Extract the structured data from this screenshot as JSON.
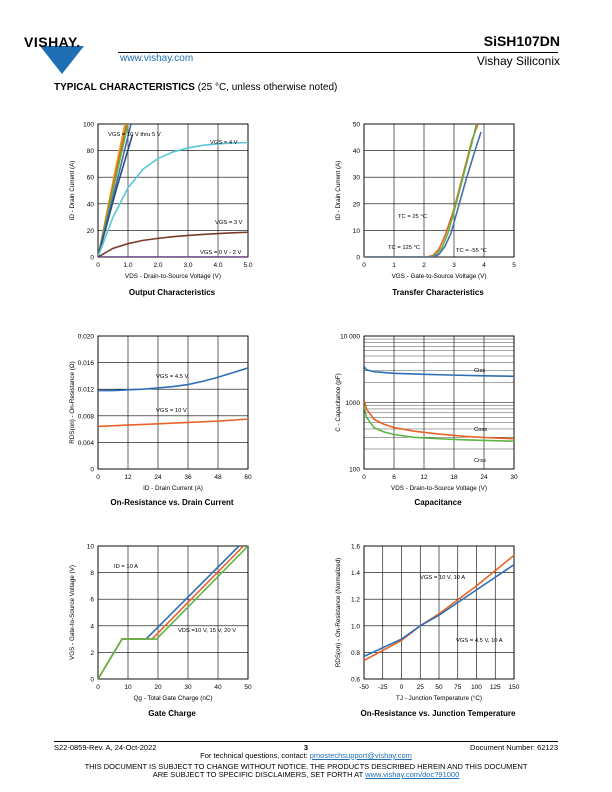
{
  "header": {
    "logo_text": "VISHAY.",
    "url": "www.vishay.com",
    "part_number": "SiSH107DN",
    "company": "Vishay Siliconix"
  },
  "section": {
    "title_bold": "TYPICAL CHARACTERISTICS",
    "title_rest": " (25 °C, unless otherwise noted)"
  },
  "chart_data": [
    {
      "type": "line",
      "title": "Output Characteristics",
      "xlabel": "VDS - Drain-to-Source Voltage (V)",
      "ylabel": "ID - Drain Current (A)",
      "xlim": [
        0,
        5
      ],
      "ylim": [
        0,
        100
      ],
      "xticks": [
        "0",
        "1.0",
        "2.0",
        "3.0",
        "4.0",
        "5.0"
      ],
      "yticks": [
        "0",
        "20",
        "40",
        "60",
        "80",
        "100"
      ],
      "annotations": [
        "VGS = 10 V thru 5 V",
        "VGS = 4 V",
        "VGS = 3 V",
        "VGS = 0 V - 2 V"
      ],
      "series": [
        {
          "color": "#e8a317",
          "x": [
            0,
            0.3,
            0.6,
            0.9
          ],
          "y": [
            0,
            34,
            68,
            100
          ]
        },
        {
          "color": "#e8632a",
          "x": [
            0,
            0.3,
            0.6,
            0.95
          ],
          "y": [
            0,
            32,
            64,
            100
          ]
        },
        {
          "color": "#5fb544",
          "x": [
            0,
            0.3,
            0.6,
            1.0
          ],
          "y": [
            0,
            30,
            60,
            100
          ]
        },
        {
          "color": "#4a6fa5",
          "x": [
            0,
            0.3,
            0.6,
            1.1
          ],
          "y": [
            0,
            27,
            54,
            100
          ]
        },
        {
          "color": "#2a4c8a",
          "x": [
            0,
            0.3,
            0.6,
            1.15
          ],
          "y": [
            0,
            25,
            50,
            92
          ]
        },
        {
          "color": "#5ac8d8",
          "x": [
            0,
            0.5,
            1.0,
            1.5,
            2.0,
            2.5,
            3.0,
            3.5,
            4.0,
            4.5,
            5.0
          ],
          "y": [
            0,
            30,
            52,
            66,
            74,
            79,
            82,
            84,
            85,
            85.8,
            86
          ]
        },
        {
          "color": "#7a3a2a",
          "x": [
            0,
            0.5,
            1.0,
            1.5,
            2.0,
            2.5,
            3.0,
            3.5,
            4.0,
            4.5,
            5.0
          ],
          "y": [
            0,
            6.5,
            10,
            12.5,
            14,
            15.3,
            16.2,
            17,
            17.6,
            18.2,
            18.6
          ]
        },
        {
          "color": "#6a2a8a",
          "x": [
            0,
            5
          ],
          "y": [
            0,
            0
          ]
        }
      ]
    },
    {
      "type": "line",
      "title": "Transfer Characteristics",
      "xlabel": "VGS - Gate-to-Source Voltage (V)",
      "ylabel": "ID - Drain Current (A)",
      "xlim": [
        0,
        5
      ],
      "ylim": [
        0,
        50
      ],
      "xticks": [
        "0",
        "1",
        "2",
        "3",
        "4",
        "5"
      ],
      "yticks": [
        "0",
        "10",
        "20",
        "30",
        "40",
        "50"
      ],
      "annotations": [
        "TC = 25 °C",
        "TC = 125 °C",
        "TC = -55 °C"
      ],
      "series": [
        {
          "color": "#e8632a",
          "x": [
            0,
            2.1,
            2.3,
            2.5,
            2.7,
            3.0,
            3.3,
            3.6,
            3.8
          ],
          "y": [
            0,
            0,
            0.6,
            3,
            8,
            18,
            31,
            44,
            50
          ]
        },
        {
          "color": "#5fb544",
          "x": [
            0,
            2.2,
            2.4,
            2.6,
            2.8,
            3.0,
            3.3,
            3.6,
            3.75
          ],
          "y": [
            0,
            0,
            0.8,
            3.5,
            9,
            17,
            30,
            43,
            50
          ]
        },
        {
          "color": "#4a6fa5",
          "x": [
            0,
            2.3,
            2.5,
            2.7,
            2.9,
            3.1,
            3.4,
            3.7,
            3.9
          ],
          "y": [
            0,
            0,
            1,
            4,
            9,
            17,
            29,
            40,
            47
          ]
        }
      ]
    },
    {
      "type": "line",
      "title": "On-Resistance vs. Drain Current",
      "xlabel": "ID - Drain Current (A)",
      "ylabel": "RDS(on) - On-Resistance (Ω)",
      "xlim": [
        0,
        60
      ],
      "ylim": [
        0,
        0.02
      ],
      "xticks": [
        "0",
        "12",
        "24",
        "36",
        "48",
        "60"
      ],
      "yticks": [
        "0",
        "0.004",
        "0.008",
        "0.012",
        "0.016",
        "0.020"
      ],
      "annotations": [
        "VGS = 4.5 V",
        "VGS = 10 V"
      ],
      "series": [
        {
          "color": "#2f6fb5",
          "x": [
            0,
            6,
            12,
            18,
            24,
            30,
            36,
            42,
            48,
            54,
            60
          ],
          "y": [
            0.0118,
            0.0118,
            0.0119,
            0.012,
            0.0122,
            0.0124,
            0.0127,
            0.0132,
            0.0138,
            0.0145,
            0.0152
          ]
        },
        {
          "color": "#e8632a",
          "x": [
            0,
            12,
            24,
            36,
            48,
            60
          ],
          "y": [
            0.0064,
            0.0066,
            0.0068,
            0.007,
            0.0072,
            0.0075
          ]
        }
      ]
    },
    {
      "type": "line",
      "title": "Capacitance",
      "xlabel": "VDS - Drain-to-Source Voltage (V)",
      "ylabel": "C - Capacitance (pF)",
      "xlim": [
        0,
        30
      ],
      "ylim": [
        100,
        10000
      ],
      "scale": "log",
      "xticks": [
        "0",
        "6",
        "12",
        "18",
        "24",
        "30"
      ],
      "yticks": [
        "100",
        "1000",
        "10 000"
      ],
      "annotations": [
        "Ciss",
        "Coss",
        "Crss"
      ],
      "series": [
        {
          "color": "#2f6fb5",
          "x": [
            0,
            0.5,
            2,
            6,
            12,
            18,
            24,
            30
          ],
          "y": [
            3500,
            3100,
            2900,
            2750,
            2650,
            2580,
            2520,
            2480
          ]
        },
        {
          "color": "#e8632a",
          "x": [
            0,
            0.5,
            2,
            4,
            6,
            10,
            15,
            20,
            25,
            30
          ],
          "y": [
            1100,
            800,
            560,
            470,
            420,
            370,
            335,
            310,
            295,
            285
          ]
        },
        {
          "color": "#5fb544",
          "x": [
            0,
            0.5,
            2,
            4,
            6,
            10,
            15,
            20,
            25,
            30
          ],
          "y": [
            900,
            600,
            420,
            360,
            330,
            300,
            285,
            275,
            268,
            262
          ]
        }
      ]
    },
    {
      "type": "line",
      "title": "Gate Charge",
      "xlabel": "Qg - Total Gate Charge (nC)",
      "ylabel": "VGS - Gate-to-Source Voltage (V)",
      "xlim": [
        0,
        50
      ],
      "ylim": [
        0,
        10
      ],
      "xticks": [
        "0",
        "10",
        "20",
        "30",
        "40",
        "50"
      ],
      "yticks": [
        "0",
        "2",
        "4",
        "6",
        "8",
        "10"
      ],
      "annotations": [
        "ID = 10 A",
        "VDS =10 V, 15 V, 20 V"
      ],
      "series": [
        {
          "color": "#2f6fb5",
          "x": [
            0,
            8,
            16,
            47
          ],
          "y": [
            0,
            3,
            3,
            10
          ]
        },
        {
          "color": "#e8632a",
          "x": [
            0,
            8,
            18,
            48.5
          ],
          "y": [
            0,
            3,
            3,
            10
          ]
        },
        {
          "color": "#5fb544",
          "x": [
            0,
            8,
            19.5,
            50
          ],
          "y": [
            0,
            3,
            3,
            10
          ]
        }
      ]
    },
    {
      "type": "line",
      "title": "On-Resistance vs. Junction Temperature",
      "xlabel": "TJ - Junction Temperature (°C)",
      "ylabel": "RDS(on) - On-Resistance (Normalized)",
      "xlim": [
        -50,
        150
      ],
      "ylim": [
        0.6,
        1.6
      ],
      "xticks": [
        "-50",
        "-25",
        "0",
        "25",
        "50",
        "75",
        "100",
        "125",
        "150"
      ],
      "yticks": [
        "0.6",
        "0.8",
        "1.0",
        "1.2",
        "1.4",
        "1.6"
      ],
      "annotations": [
        "VGS = 10 V, 10 A",
        "VGS = 4.5 V, 10 A"
      ],
      "series": [
        {
          "color": "#e8632a",
          "x": [
            -50,
            0,
            25,
            50,
            100,
            150
          ],
          "y": [
            0.74,
            0.89,
            1.0,
            1.09,
            1.3,
            1.53
          ]
        },
        {
          "color": "#2f6fb5",
          "x": [
            -50,
            0,
            25,
            50,
            100,
            150
          ],
          "y": [
            0.77,
            0.9,
            1.0,
            1.08,
            1.27,
            1.46
          ]
        }
      ]
    }
  ],
  "footer": {
    "revision": "S22-0859-Rev. A, 24-Oct-2022",
    "page": "3",
    "doc_number": "Document Number: 62123",
    "questions_prefix": "For technical questions, contact: ",
    "questions_email": "pmostechsupport@vishay.com",
    "disclaimer1": "THIS DOCUMENT IS SUBJECT TO CHANGE WITHOUT NOTICE. THE PRODUCTS DESCRIBED HEREIN AND THIS DOCUMENT",
    "disclaimer2_prefix": "ARE SUBJECT TO SPECIFIC DISCLAIMERS, SET FORTH AT ",
    "disclaimer2_link": "www.vishay.com/doc?91000"
  }
}
